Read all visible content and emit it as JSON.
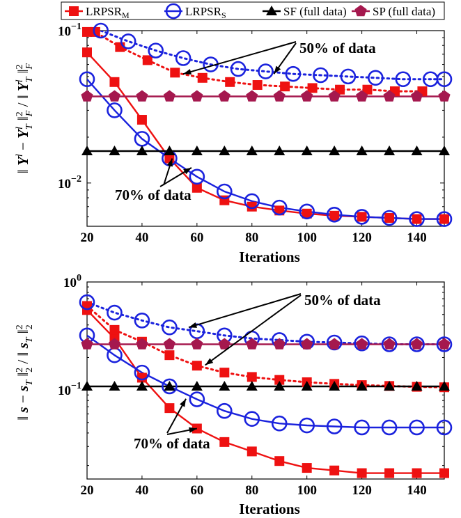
{
  "legend": [
    {
      "label": "LRPSR",
      "sub": "M",
      "color": "#ee1111",
      "marker": "square",
      "line": "solid"
    },
    {
      "label": "LRPSR",
      "sub": "S",
      "color": "#1a22dd",
      "marker": "circle",
      "line": "solid"
    },
    {
      "label": "SF (full data)",
      "color": "#000000",
      "marker": "triangle",
      "line": "solid"
    },
    {
      "label": "SP (full data)",
      "color": "#a5184e",
      "marker": "pentagon",
      "line": "solid"
    }
  ],
  "chart_data": [
    {
      "type": "line",
      "xlabel": "Iterations",
      "ylabel_text": "‖ Y^l − Y_T^l ‖_F^2 / ‖ Y_T^l ‖_F^2",
      "yscale": "log",
      "xlim": [
        20,
        150
      ],
      "ylim": [
        0.0052,
        0.1
      ],
      "xticks": [
        20,
        40,
        60,
        80,
        100,
        120,
        140
      ],
      "yticks": [
        {
          "value": 0.1,
          "base": "10",
          "exp": "−1"
        },
        {
          "value": 0.01,
          "base": "10",
          "exp": "−2"
        }
      ],
      "annotations": [
        {
          "text": "50% of data",
          "targets": [
            [
              55,
              0.052
            ],
            [
              88,
              0.052
            ]
          ]
        },
        {
          "text": "70% of data",
          "targets": [
            [
              51,
              0.0145
            ],
            [
              58,
              0.0126
            ]
          ]
        }
      ],
      "series": [
        {
          "name": "LRPSR_M (70% of data)",
          "color": "#ee1111",
          "marker": "square",
          "line": "solid",
          "x": [
            20,
            30,
            40,
            50,
            60,
            70,
            80,
            90,
            100,
            110,
            120,
            130,
            140,
            150
          ],
          "y": [
            0.072,
            0.046,
            0.026,
            0.0145,
            0.0093,
            0.0077,
            0.007,
            0.0066,
            0.0063,
            0.0061,
            0.006,
            0.0059,
            0.0058,
            0.0058
          ]
        },
        {
          "name": "LRPSR_S (70% of data)",
          "color": "#1a22dd",
          "marker": "circle",
          "line": "solid",
          "x": [
            20,
            30,
            40,
            50,
            60,
            70,
            80,
            90,
            100,
            110,
            120,
            130,
            140,
            150
          ],
          "y": [
            0.048,
            0.03,
            0.0195,
            0.0145,
            0.011,
            0.0088,
            0.0076,
            0.0069,
            0.0065,
            0.0062,
            0.006,
            0.0059,
            0.0058,
            0.0058
          ]
        },
        {
          "name": "LRPSR_M (50% of data)",
          "color": "#ee1111",
          "marker": "square",
          "line": "dotted",
          "x": [
            20,
            23,
            32,
            42,
            52,
            62,
            72,
            82,
            92,
            102,
            112,
            122,
            132,
            142
          ],
          "y": [
            0.098,
            0.098,
            0.078,
            0.064,
            0.053,
            0.049,
            0.046,
            0.044,
            0.043,
            0.042,
            0.041,
            0.041,
            0.04,
            0.04
          ]
        },
        {
          "name": "LRPSR_S (50% of data)",
          "color": "#1a22dd",
          "marker": "circle",
          "line": "dotted",
          "x": [
            25,
            35,
            45,
            55,
            65,
            75,
            85,
            95,
            105,
            115,
            125,
            135,
            145,
            150
          ],
          "y": [
            0.1,
            0.085,
            0.074,
            0.066,
            0.06,
            0.056,
            0.054,
            0.052,
            0.051,
            0.05,
            0.049,
            0.048,
            0.048,
            0.048
          ]
        },
        {
          "name": "SF (full data)",
          "color": "#000000",
          "marker": "triangle",
          "line": "solid",
          "x": [
            20,
            30,
            40,
            50,
            60,
            70,
            80,
            90,
            100,
            110,
            120,
            130,
            140,
            150
          ],
          "y": [
            0.0162,
            0.0162,
            0.0162,
            0.0162,
            0.0162,
            0.0162,
            0.0162,
            0.0162,
            0.0162,
            0.0162,
            0.0162,
            0.0162,
            0.0162,
            0.0162
          ]
        },
        {
          "name": "SP (full data)",
          "color": "#a5184e",
          "marker": "pentagon",
          "line": "solid",
          "x": [
            20,
            30,
            40,
            50,
            60,
            70,
            80,
            90,
            100,
            110,
            120,
            130,
            140,
            150
          ],
          "y": [
            0.037,
            0.037,
            0.037,
            0.037,
            0.037,
            0.037,
            0.037,
            0.037,
            0.037,
            0.037,
            0.037,
            0.037,
            0.037,
            0.037
          ]
        }
      ]
    },
    {
      "type": "line",
      "xlabel": "Iterations",
      "ylabel_text": "‖ s − s_T ‖_2^2 / ‖ s_T ‖_2^2",
      "yscale": "log",
      "xlim": [
        20,
        150
      ],
      "ylim": [
        0.015,
        1.0
      ],
      "xticks": [
        20,
        40,
        60,
        80,
        100,
        120,
        140
      ],
      "yticks": [
        {
          "value": 1.0,
          "base": "10",
          "exp": "0"
        },
        {
          "value": 0.1,
          "base": "10",
          "exp": "−1"
        }
      ],
      "annotations": [
        {
          "text": "50% of data",
          "targets": [
            [
              57,
              0.38
            ],
            [
              63,
              0.17
            ]
          ]
        },
        {
          "text": "70% of data",
          "targets": [
            [
              56,
              0.083
            ],
            [
              60,
              0.044
            ]
          ]
        }
      ],
      "series": [
        {
          "name": "LRPSR_M (70% of data)",
          "color": "#ee1111",
          "marker": "square",
          "line": "solid",
          "x": [
            20,
            30,
            40,
            50,
            60,
            70,
            80,
            90,
            100,
            110,
            120,
            130,
            140,
            150
          ],
          "y": [
            0.55,
            0.3,
            0.13,
            0.068,
            0.044,
            0.033,
            0.027,
            0.022,
            0.019,
            0.018,
            0.017,
            0.017,
            0.017,
            0.017
          ]
        },
        {
          "name": "LRPSR_S (70% of data)",
          "color": "#1a22dd",
          "marker": "circle",
          "line": "solid",
          "x": [
            20,
            30,
            40,
            50,
            60,
            70,
            80,
            90,
            100,
            110,
            120,
            130,
            140,
            150
          ],
          "y": [
            0.32,
            0.21,
            0.145,
            0.108,
            0.082,
            0.064,
            0.054,
            0.049,
            0.047,
            0.046,
            0.045,
            0.045,
            0.045,
            0.045
          ]
        },
        {
          "name": "LRPSR_M (50% of data)",
          "color": "#ee1111",
          "marker": "square",
          "line": "dotted",
          "x": [
            20,
            30,
            40,
            50,
            60,
            70,
            80,
            90,
            100,
            110,
            120,
            130,
            140,
            150
          ],
          "y": [
            0.6,
            0.36,
            0.28,
            0.21,
            0.168,
            0.145,
            0.132,
            0.124,
            0.118,
            0.114,
            0.111,
            0.109,
            0.107,
            0.106
          ]
        },
        {
          "name": "LRPSR_S (50% of data)",
          "color": "#1a22dd",
          "marker": "circle",
          "line": "dotted",
          "x": [
            20,
            30,
            40,
            50,
            60,
            70,
            80,
            90,
            100,
            110,
            120,
            130,
            140,
            150
          ],
          "y": [
            0.65,
            0.52,
            0.44,
            0.38,
            0.35,
            0.32,
            0.3,
            0.29,
            0.28,
            0.275,
            0.27,
            0.265,
            0.265,
            0.265
          ]
        },
        {
          "name": "SF (full data)",
          "color": "#000000",
          "marker": "triangle",
          "line": "solid",
          "x": [
            20,
            30,
            40,
            50,
            60,
            70,
            80,
            90,
            100,
            110,
            120,
            130,
            140,
            150
          ],
          "y": [
            0.108,
            0.108,
            0.108,
            0.108,
            0.108,
            0.108,
            0.108,
            0.108,
            0.108,
            0.108,
            0.108,
            0.108,
            0.108,
            0.108
          ]
        },
        {
          "name": "SP (full data)",
          "color": "#a5184e",
          "marker": "pentagon",
          "line": "solid",
          "x": [
            20,
            30,
            40,
            50,
            60,
            70,
            80,
            90,
            100,
            110,
            120,
            130,
            140,
            150
          ],
          "y": [
            0.265,
            0.265,
            0.265,
            0.265,
            0.265,
            0.265,
            0.265,
            0.265,
            0.265,
            0.265,
            0.265,
            0.265,
            0.265,
            0.265
          ]
        }
      ]
    }
  ]
}
